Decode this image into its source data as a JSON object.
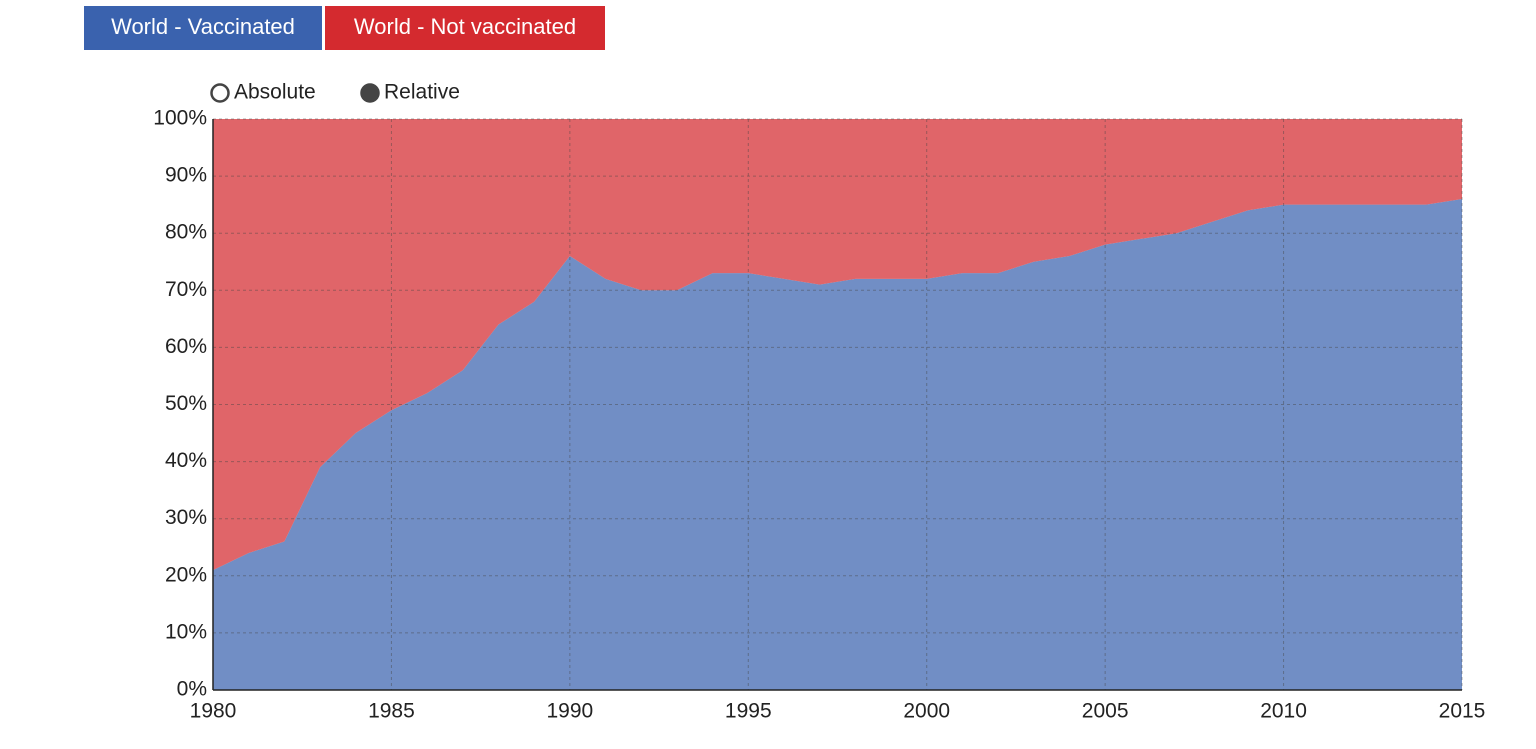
{
  "chart_data": {
    "type": "stacked_area",
    "x": [
      1980,
      1981,
      1982,
      1983,
      1984,
      1985,
      1986,
      1987,
      1988,
      1989,
      1990,
      1991,
      1992,
      1993,
      1994,
      1995,
      1996,
      1997,
      1998,
      1999,
      2000,
      2001,
      2002,
      2003,
      2004,
      2005,
      2006,
      2007,
      2008,
      2009,
      2010,
      2011,
      2012,
      2013,
      2014,
      2015
    ],
    "series": [
      {
        "name": "World - Vaccinated",
        "color": "#3a62ae",
        "values": [
          21,
          24,
          26,
          39,
          45,
          49,
          52,
          56,
          64,
          68,
          76,
          72,
          70,
          70,
          73,
          73,
          72,
          71,
          72,
          72,
          72,
          73,
          73,
          75,
          76,
          78,
          79,
          80,
          82,
          84,
          85,
          85,
          85,
          85,
          85,
          86
        ]
      },
      {
        "name": "World - Not vaccinated",
        "color": "#d42a2f",
        "values": [
          79,
          76,
          74,
          61,
          55,
          51,
          48,
          44,
          36,
          32,
          24,
          28,
          30,
          30,
          27,
          27,
          28,
          29,
          28,
          28,
          28,
          27,
          27,
          25,
          24,
          22,
          21,
          20,
          18,
          16,
          15,
          15,
          15,
          15,
          15,
          14
        ]
      }
    ],
    "modes": [
      "Absolute",
      "Relative"
    ],
    "relative": true,
    "xlim": [
      1980,
      2015
    ],
    "xticks": [
      1980,
      1985,
      1990,
      1995,
      2000,
      2005,
      2010,
      2015
    ],
    "ylim": [
      0,
      100
    ],
    "yticks": [
      {
        "value": 0,
        "label": "0%"
      },
      {
        "value": 10,
        "label": "10%"
      },
      {
        "value": 20,
        "label": "20%"
      },
      {
        "value": 30,
        "label": "30%"
      },
      {
        "value": 40,
        "label": "40%"
      },
      {
        "value": 50,
        "label": "50%"
      },
      {
        "value": 60,
        "label": "60%"
      },
      {
        "value": 70,
        "label": "70%"
      },
      {
        "value": 80,
        "label": "80%"
      },
      {
        "value": 90,
        "label": "90%"
      },
      {
        "value": 100,
        "label": "100%"
      }
    ],
    "grid": true
  }
}
